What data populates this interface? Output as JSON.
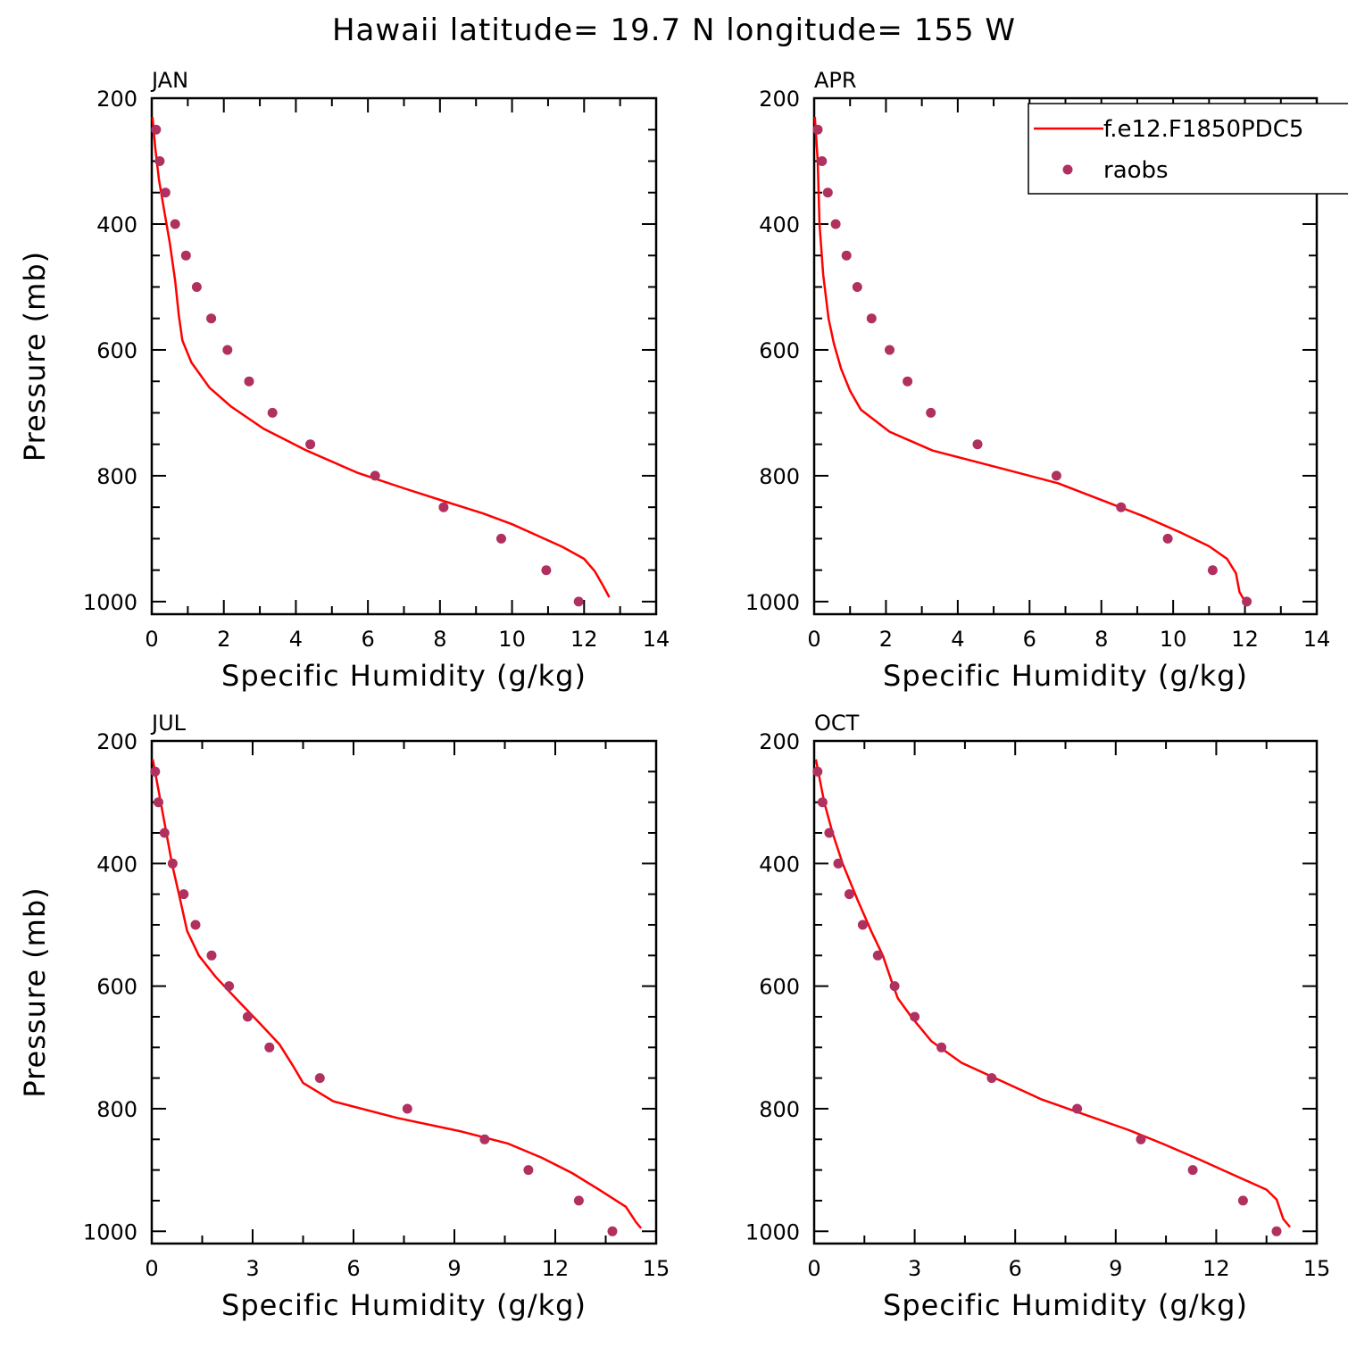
{
  "colors": {
    "model": "#ff0000",
    "obs": "#b03060",
    "axis": "#000000"
  },
  "chart_data": {
    "title": "Hawaii  latitude= 19.7 N longitude= 155 W",
    "legend": {
      "placement": "top-right of APR panel",
      "entries": [
        {
          "label": "f.e12.F1850PDC5",
          "marker": "line",
          "color": "#ff0000"
        },
        {
          "label": "raobs",
          "marker": "dot",
          "color": "#b03060"
        }
      ]
    },
    "panels": [
      {
        "type": "line",
        "label": "JAN",
        "xlabel": "Specific Humidity (g/kg)",
        "ylabel": "Pressure (mb)",
        "xlim": [
          0,
          14
        ],
        "ylim": [
          1020,
          200
        ],
        "xticks": [
          0,
          2,
          4,
          6,
          8,
          10,
          12,
          14
        ],
        "yticks": [
          200,
          400,
          600,
          800,
          1000
        ],
        "series": [
          {
            "name": "f.e12.F1850PDC5",
            "kind": "line",
            "points": [
              [
                0.02,
                230
              ],
              [
                0.1,
                280
              ],
              [
                0.2,
                330
              ],
              [
                0.35,
                380
              ],
              [
                0.5,
                430
              ],
              [
                0.65,
                490
              ],
              [
                0.75,
                545
              ],
              [
                0.85,
                585
              ],
              [
                1.1,
                620
              ],
              [
                1.6,
                660
              ],
              [
                2.2,
                690
              ],
              [
                3.1,
                725
              ],
              [
                4.3,
                760
              ],
              [
                5.7,
                795
              ],
              [
                7.0,
                820
              ],
              [
                8.2,
                842
              ],
              [
                9.2,
                860
              ],
              [
                10.0,
                877
              ],
              [
                10.7,
                895
              ],
              [
                11.4,
                913
              ],
              [
                12.0,
                932
              ],
              [
                12.3,
                952
              ],
              [
                12.5,
                972
              ],
              [
                12.7,
                993
              ]
            ]
          },
          {
            "name": "raobs",
            "kind": "scatter",
            "points": [
              [
                0.12,
                250
              ],
              [
                0.22,
                300
              ],
              [
                0.38,
                350
              ],
              [
                0.65,
                400
              ],
              [
                0.95,
                450
              ],
              [
                1.25,
                500
              ],
              [
                1.65,
                550
              ],
              [
                2.1,
                600
              ],
              [
                2.7,
                650
              ],
              [
                3.35,
                700
              ],
              [
                4.4,
                750
              ],
              [
                6.2,
                800
              ],
              [
                8.1,
                850
              ],
              [
                9.7,
                900
              ],
              [
                10.95,
                950
              ],
              [
                11.85,
                1000
              ]
            ]
          }
        ]
      },
      {
        "type": "line",
        "label": "APR",
        "xlabel": "Specific Humidity (g/kg)",
        "ylabel": "",
        "xlim": [
          0,
          14
        ],
        "ylim": [
          1020,
          200
        ],
        "xticks": [
          0,
          2,
          4,
          6,
          8,
          10,
          12,
          14
        ],
        "yticks": [
          200,
          400,
          600,
          800,
          1000
        ],
        "series": [
          {
            "name": "f.e12.F1850PDC5",
            "kind": "line",
            "points": [
              [
                0.02,
                230
              ],
              [
                0.1,
                300
              ],
              [
                0.15,
                400
              ],
              [
                0.25,
                480
              ],
              [
                0.4,
                550
              ],
              [
                0.55,
                590
              ],
              [
                0.75,
                630
              ],
              [
                1.0,
                665
              ],
              [
                1.3,
                695
              ],
              [
                2.1,
                730
              ],
              [
                3.3,
                760
              ],
              [
                5.0,
                785
              ],
              [
                6.8,
                812
              ],
              [
                8.2,
                843
              ],
              [
                9.2,
                865
              ],
              [
                10.2,
                890
              ],
              [
                11.0,
                912
              ],
              [
                11.5,
                932
              ],
              [
                11.75,
                955
              ],
              [
                11.85,
                985
              ],
              [
                12.0,
                1000
              ]
            ]
          },
          {
            "name": "raobs",
            "kind": "scatter",
            "points": [
              [
                0.1,
                250
              ],
              [
                0.22,
                300
              ],
              [
                0.38,
                350
              ],
              [
                0.6,
                400
              ],
              [
                0.9,
                450
              ],
              [
                1.2,
                500
              ],
              [
                1.6,
                550
              ],
              [
                2.1,
                600
              ],
              [
                2.6,
                650
              ],
              [
                3.25,
                700
              ],
              [
                4.55,
                750
              ],
              [
                6.75,
                800
              ],
              [
                8.55,
                850
              ],
              [
                9.85,
                900
              ],
              [
                11.1,
                950
              ],
              [
                12.05,
                1000
              ]
            ]
          }
        ]
      },
      {
        "type": "line",
        "label": "JUL",
        "xlabel": "Specific Humidity (g/kg)",
        "ylabel": "Pressure (mb)",
        "xlim": [
          0,
          15
        ],
        "ylim": [
          1020,
          200
        ],
        "xticks": [
          0,
          3,
          6,
          9,
          12,
          15
        ],
        "yticks": [
          200,
          400,
          600,
          800,
          1000
        ],
        "series": [
          {
            "name": "f.e12.F1850PDC5",
            "kind": "line",
            "points": [
              [
                0.03,
                230
              ],
              [
                0.2,
                280
              ],
              [
                0.4,
                340
              ],
              [
                0.6,
                400
              ],
              [
                0.85,
                460
              ],
              [
                1.05,
                510
              ],
              [
                1.4,
                550
              ],
              [
                1.9,
                585
              ],
              [
                2.5,
                620
              ],
              [
                3.2,
                660
              ],
              [
                3.8,
                695
              ],
              [
                4.2,
                730
              ],
              [
                4.5,
                758
              ],
              [
                5.4,
                788
              ],
              [
                7.3,
                815
              ],
              [
                9.2,
                837
              ],
              [
                10.6,
                857
              ],
              [
                11.6,
                880
              ],
              [
                12.5,
                905
              ],
              [
                13.3,
                932
              ],
              [
                14.1,
                960
              ],
              [
                14.4,
                985
              ],
              [
                14.55,
                995
              ]
            ]
          },
          {
            "name": "raobs",
            "kind": "scatter",
            "points": [
              [
                0.1,
                250
              ],
              [
                0.2,
                300
              ],
              [
                0.38,
                350
              ],
              [
                0.62,
                400
              ],
              [
                0.95,
                450
              ],
              [
                1.3,
                500
              ],
              [
                1.78,
                550
              ],
              [
                2.3,
                600
              ],
              [
                2.85,
                650
              ],
              [
                3.5,
                700
              ],
              [
                5.0,
                750
              ],
              [
                7.6,
                800
              ],
              [
                9.9,
                850
              ],
              [
                11.2,
                900
              ],
              [
                12.7,
                950
              ],
              [
                13.7,
                1000
              ]
            ]
          }
        ]
      },
      {
        "type": "line",
        "label": "OCT",
        "xlabel": "Specific Humidity (g/kg)",
        "ylabel": "",
        "xlim": [
          0,
          15
        ],
        "ylim": [
          1020,
          200
        ],
        "xticks": [
          0,
          3,
          6,
          9,
          12,
          15
        ],
        "yticks": [
          200,
          400,
          600,
          800,
          1000
        ],
        "series": [
          {
            "name": "f.e12.F1850PDC5",
            "kind": "line",
            "points": [
              [
                0.05,
                230
              ],
              [
                0.3,
                300
              ],
              [
                0.55,
                350
              ],
              [
                0.85,
                400
              ],
              [
                1.3,
                460
              ],
              [
                1.7,
                510
              ],
              [
                2.05,
                550
              ],
              [
                2.3,
                590
              ],
              [
                2.5,
                620
              ],
              [
                2.9,
                650
              ],
              [
                3.5,
                690
              ],
              [
                4.4,
                725
              ],
              [
                5.6,
                755
              ],
              [
                6.8,
                785
              ],
              [
                8.2,
                812
              ],
              [
                9.4,
                835
              ],
              [
                10.4,
                857
              ],
              [
                11.5,
                883
              ],
              [
                12.6,
                910
              ],
              [
                13.5,
                932
              ],
              [
                13.8,
                948
              ],
              [
                14.0,
                980
              ],
              [
                14.2,
                993
              ]
            ]
          },
          {
            "name": "raobs",
            "kind": "scatter",
            "points": [
              [
                0.1,
                250
              ],
              [
                0.25,
                300
              ],
              [
                0.45,
                350
              ],
              [
                0.72,
                400
              ],
              [
                1.05,
                450
              ],
              [
                1.45,
                500
              ],
              [
                1.9,
                550
              ],
              [
                2.4,
                600
              ],
              [
                3.0,
                650
              ],
              [
                3.8,
                700
              ],
              [
                5.3,
                750
              ],
              [
                7.85,
                800
              ],
              [
                9.75,
                850
              ],
              [
                11.3,
                900
              ],
              [
                12.8,
                950
              ],
              [
                13.8,
                1000
              ]
            ]
          }
        ]
      }
    ]
  }
}
